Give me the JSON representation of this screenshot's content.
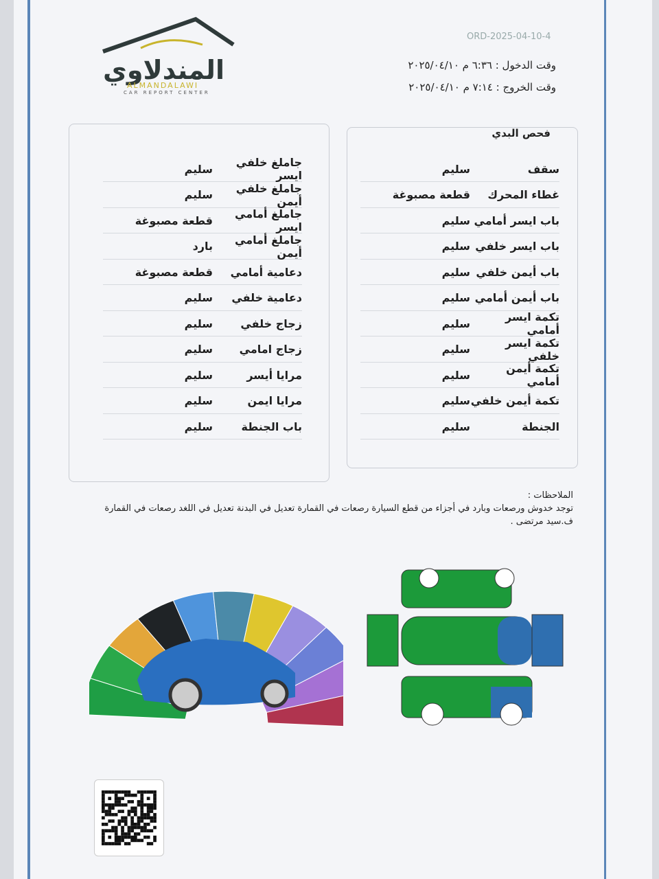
{
  "header": {
    "logo_arabic": "المندلاوي",
    "logo_latin": "ALMANDALAWI",
    "logo_tagline": "CAR REPORT CENTER",
    "order_id": "ORD-2025-04-10-4",
    "entry_time": "وقت الدخول : ٦:٣٦ م ٢٠٢٥/٠٤/١٠",
    "exit_time": "وقت الخروج : ٧:١٤ م ٢٠٢٥/٠٤/١٠"
  },
  "body_check": {
    "title": "فحص البدي",
    "right_rows": [
      [
        "سقف",
        "سليم"
      ],
      [
        "غطاء المحرك",
        "قطعة مصبوغة"
      ],
      [
        "باب ايسر أمامي",
        "سليم"
      ],
      [
        "باب ايسر خلفي",
        "سليم"
      ],
      [
        "باب أيمن خلفي",
        "سليم"
      ],
      [
        "باب أيمن أمامي",
        "سليم"
      ],
      [
        "تكمة ايسر أمامي",
        "سليم"
      ],
      [
        "تكمة ايسر خلفي",
        "سليم"
      ],
      [
        "تكمة أيمن أمامي",
        "سليم"
      ],
      [
        "تكمة أيمن خلفي",
        "سليم"
      ],
      [
        "الجنطة",
        "سليم"
      ]
    ],
    "left_rows": [
      [
        "جاملغ خلفي ايسر",
        "سليم"
      ],
      [
        "جاملغ خلفي أيمن",
        "سليم"
      ],
      [
        "جاملغ أمامي ايسر",
        "قطعة مصبوغة"
      ],
      [
        "جاملغ أمامي أيمن",
        "بارد"
      ],
      [
        "دعامية أمامي",
        "قطعة مصبوغة"
      ],
      [
        "دعامية خلفي",
        "سليم"
      ],
      [
        "زجاج خلفي",
        "سليم"
      ],
      [
        "زجاج امامي",
        "سليم"
      ],
      [
        "مرايا أيسر",
        "سليم"
      ],
      [
        "مرايا ايمن",
        "سليم"
      ],
      [
        "باب الجنطة",
        "سليم"
      ]
    ]
  },
  "notes": {
    "label": "الملاحظات :",
    "text": "توجد خدوش ورصعات وبارد في أجزاء من قطع السيارة رصعات في القمارة تعديل في البدنة تعديل في اللغد رصعات في القمارة ف.سيد مرتضى ."
  }
}
